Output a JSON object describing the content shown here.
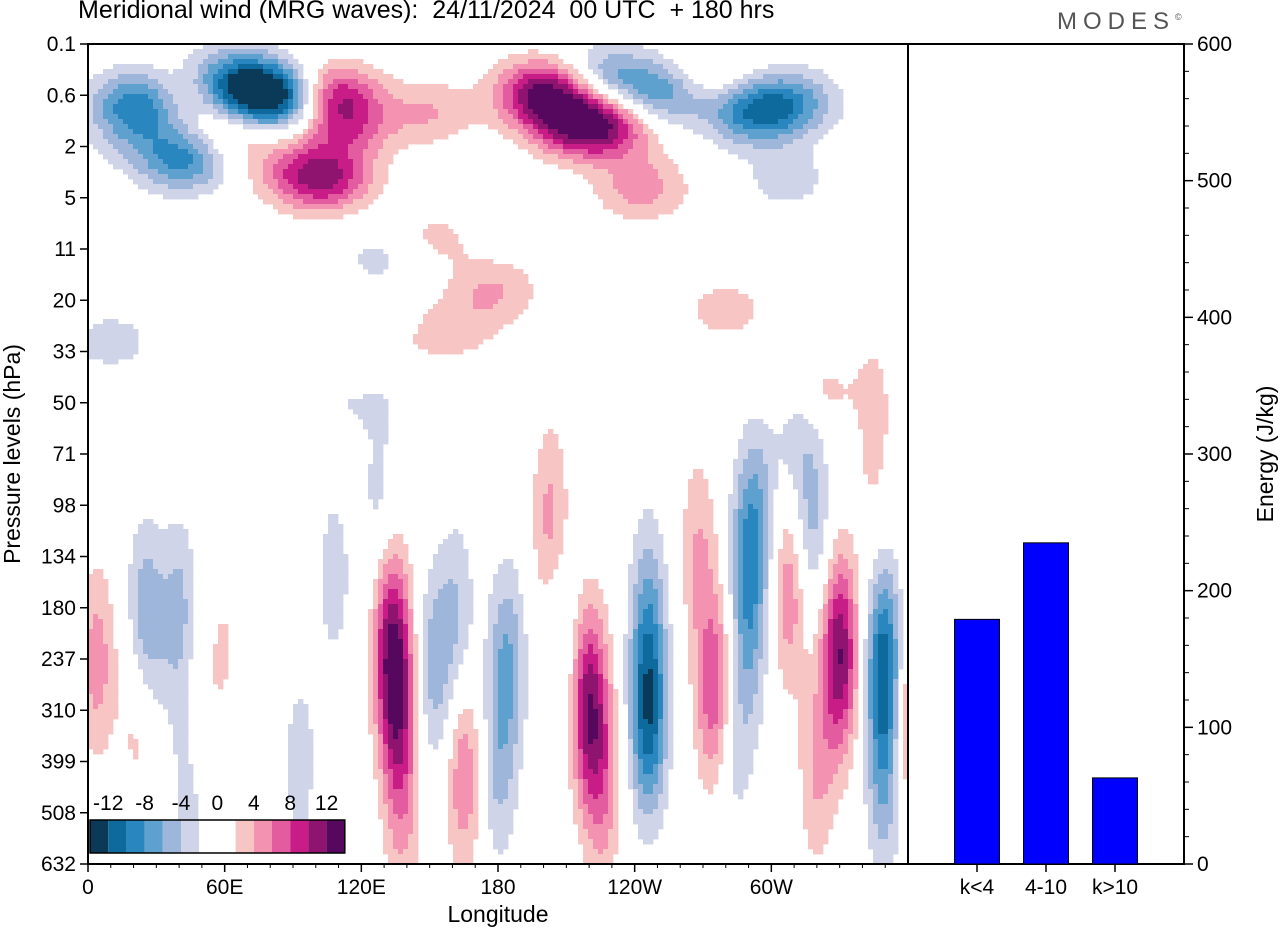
{
  "title": "Meridional wind (MRG waves):  24/11/2024  00 UTC  + 180 hrs",
  "brand": "MODES",
  "brand_mark": "©",
  "colors": {
    "negative": [
      "#0b3a58",
      "#0e6a9c",
      "#2a86bf",
      "#5ea1cf",
      "#9db6d9",
      "#cfd4e8",
      "#ffffff"
    ],
    "positive": [
      "#ffffff",
      "#f7c6c4",
      "#f493b1",
      "#e35ca0",
      "#c81d87",
      "#8e1470",
      "#55085e"
    ],
    "bar": "#0000ff"
  },
  "chart_data": [
    {
      "type": "heatmap",
      "title": "Meridional wind (MRG waves):  24/11/2024  00 UTC  + 180 hrs",
      "xlabel": "Longitude",
      "ylabel": "Pressure levels (hPa)",
      "x_ticks": [
        "0",
        "60E",
        "120E",
        "180",
        "120W",
        "60W"
      ],
      "y_ticks": [
        "0.1",
        "0.6",
        "2",
        "5",
        "11",
        "20",
        "33",
        "50",
        "71",
        "98",
        "134",
        "180",
        "237",
        "310",
        "399",
        "508",
        "632"
      ],
      "colorbar": {
        "labels": [
          "-12",
          "-8",
          "-4",
          "0",
          "4",
          "8",
          "12"
        ],
        "levels": [
          -14,
          -12,
          -10,
          -8,
          -6,
          -4,
          -2,
          0,
          2,
          4,
          6,
          8,
          10,
          12,
          14
        ]
      },
      "features": [
        {
          "lon": 22,
          "lev": 0.7,
          "value": -9
        },
        {
          "lon": 20,
          "lev": 1.5,
          "value": -3
        },
        {
          "lon": 41,
          "lev": 2.6,
          "value": -6
        },
        {
          "lon": 47,
          "lev": 2.2,
          "value": -4
        },
        {
          "lon": 45,
          "lev": 0.5,
          "value": 4
        },
        {
          "lon": 58,
          "lev": 0.3,
          "value": -5
        },
        {
          "lon": 70,
          "lev": 0.5,
          "value": -10
        },
        {
          "lon": 88,
          "lev": 0.65,
          "value": -13
        },
        {
          "lon": 60,
          "lev": 1.6,
          "value": 5
        },
        {
          "lon": 105,
          "lev": 0.6,
          "value": 12
        },
        {
          "lon": 113,
          "lev": 1.3,
          "value": 6
        },
        {
          "lon": 108,
          "lev": 3.5,
          "value": 4
        },
        {
          "lon": 88,
          "lev": 3.0,
          "value": 3
        },
        {
          "lon": 101,
          "lev": 3.6,
          "value": 6
        },
        {
          "lon": 150,
          "lev": 0.9,
          "value": 4
        },
        {
          "lon": 200,
          "lev": 0.55,
          "value": 12
        },
        {
          "lon": 214,
          "lev": 1.15,
          "value": 10
        },
        {
          "lon": 230,
          "lev": 1.3,
          "value": 7
        },
        {
          "lon": 228,
          "lev": 0.3,
          "value": -6
        },
        {
          "lon": 254,
          "lev": 0.55,
          "value": -8
        },
        {
          "lon": 270,
          "lev": 0.35,
          "value": 4
        },
        {
          "lon": 292,
          "lev": 0.9,
          "value": -9
        },
        {
          "lon": 310,
          "lev": 0.7,
          "value": -6
        },
        {
          "lon": 243,
          "lev": 4.2,
          "value": 5
        },
        {
          "lon": 307,
          "lev": 3.6,
          "value": -3
        },
        {
          "lon": 150,
          "lev": 9.5,
          "value": 3
        },
        {
          "lon": 130,
          "lev": 12,
          "value": -3
        },
        {
          "lon": 178,
          "lev": 18,
          "value": 4
        },
        {
          "lon": 160,
          "lev": 27,
          "value": 3
        },
        {
          "lon": 280,
          "lev": 22,
          "value": 3
        },
        {
          "lon": 10,
          "lev": 30,
          "value": -3
        },
        {
          "lon": 125,
          "lev": 38,
          "value": 3
        },
        {
          "lon": 120,
          "lev": 47,
          "value": -3
        },
        {
          "lon": 318,
          "lev": 45,
          "value": 3
        },
        {
          "lon": 310,
          "lev": 60,
          "value": -3
        },
        {
          "lon": 296,
          "lev": 95,
          "value": -3
        },
        {
          "lon": 345,
          "lev": 60,
          "value": 3
        },
        {
          "lon": 318,
          "lev": 110,
          "value": -5
        },
        {
          "lon": 128,
          "lev": 95,
          "value": -3
        },
        {
          "lon": 25,
          "lev": 200,
          "value": -7
        },
        {
          "lon": 40,
          "lev": 190,
          "value": -5
        },
        {
          "lon": 4,
          "lev": 240,
          "value": 5
        },
        {
          "lon": 22,
          "lev": 300,
          "value": 4
        },
        {
          "lon": 48,
          "lev": 330,
          "value": 3
        },
        {
          "lon": 60,
          "lev": 220,
          "value": 2
        },
        {
          "lon": 45,
          "lev": 440,
          "value": -4
        },
        {
          "lon": 93,
          "lev": 400,
          "value": -3
        },
        {
          "lon": 108,
          "lev": 150,
          "value": -3
        },
        {
          "lon": 133,
          "lev": 210,
          "value": 9
        },
        {
          "lon": 136,
          "lev": 300,
          "value": 8
        },
        {
          "lon": 138,
          "lev": 500,
          "value": 4
        },
        {
          "lon": 152,
          "lev": 250,
          "value": -5
        },
        {
          "lon": 162,
          "lev": 190,
          "value": -4
        },
        {
          "lon": 165,
          "lev": 420,
          "value": 6
        },
        {
          "lon": 184,
          "lev": 240,
          "value": -6
        },
        {
          "lon": 180,
          "lev": 420,
          "value": -4
        },
        {
          "lon": 203,
          "lev": 110,
          "value": 5
        },
        {
          "lon": 207,
          "lev": 210,
          "value": -3
        },
        {
          "lon": 220,
          "lev": 300,
          "value": 11
        },
        {
          "lon": 226,
          "lev": 450,
          "value": 5
        },
        {
          "lon": 246,
          "lev": 320,
          "value": -11
        },
        {
          "lon": 246,
          "lev": 180,
          "value": -5
        },
        {
          "lon": 275,
          "lev": 280,
          "value": 8
        },
        {
          "lon": 268,
          "lev": 130,
          "value": 4
        },
        {
          "lon": 290,
          "lev": 130,
          "value": -7
        },
        {
          "lon": 290,
          "lev": 230,
          "value": -4
        },
        {
          "lon": 283,
          "lev": 380,
          "value": -3
        },
        {
          "lon": 308,
          "lev": 160,
          "value": 6
        },
        {
          "lon": 330,
          "lev": 230,
          "value": 12
        },
        {
          "lon": 320,
          "lev": 420,
          "value": 4
        },
        {
          "lon": 350,
          "lev": 250,
          "value": -12
        },
        {
          "lon": 350,
          "lev": 450,
          "value": -5
        },
        {
          "lon": 360,
          "lev": 320,
          "value": 7
        }
      ]
    },
    {
      "type": "bar",
      "ylabel": "Energy (J/kg)",
      "categories": [
        "k<4",
        "4-10",
        "k>10"
      ],
      "values": [
        179,
        235,
        63
      ],
      "ylim": [
        0,
        600
      ],
      "y_ticks": [
        "0",
        "100",
        "200",
        "300",
        "400",
        "500",
        "600"
      ]
    }
  ]
}
